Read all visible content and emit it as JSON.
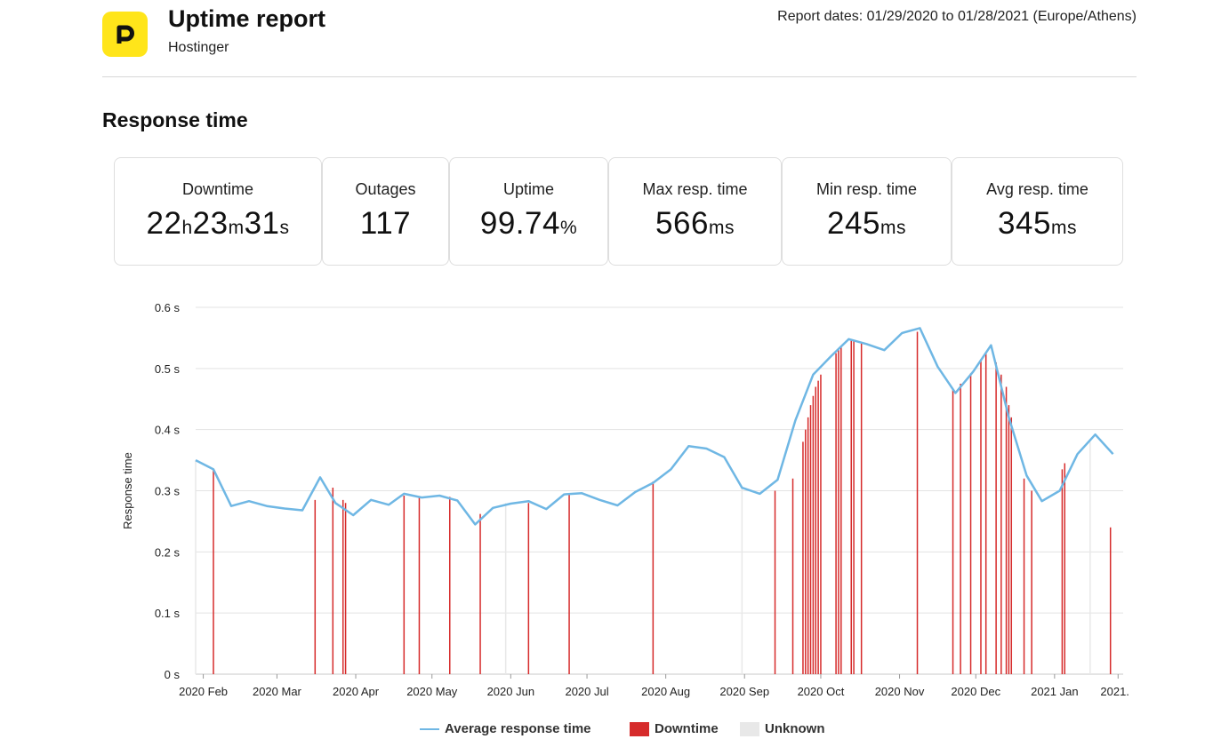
{
  "header": {
    "logo_letter": "P",
    "title": "Uptime report",
    "subtitle": "Hostinger",
    "report_dates": "Report dates: 01/29/2020 to 01/28/2021 (Europe/Athens)"
  },
  "section_title": "Response time",
  "stats": {
    "downtime": {
      "label": "Downtime",
      "h": "22",
      "h_unit": "h",
      "m": "23",
      "m_unit": "m",
      "s": "31",
      "s_unit": "s"
    },
    "outages": {
      "label": "Outages",
      "value": "117"
    },
    "uptime": {
      "label": "Uptime",
      "value": "99.74",
      "unit": "%"
    },
    "max_resp": {
      "label": "Max resp. time",
      "value": "566",
      "unit": "ms"
    },
    "min_resp": {
      "label": "Min resp. time",
      "value": "245",
      "unit": "ms"
    },
    "avg_resp": {
      "label": "Avg resp. time",
      "value": "345",
      "unit": "ms"
    }
  },
  "colors": {
    "logo_bg": "#ffe51a",
    "line": "#6fb7e4",
    "downtime": "#d62b2b",
    "unknown": "#e8e8e8",
    "grid": "#e3e3e3"
  },
  "chart_data": {
    "type": "line",
    "ylabel": "Response time",
    "ylim": [
      0,
      0.6
    ],
    "y_ticks": [
      "0 s",
      "0.1 s",
      "0.2 s",
      "0.3 s",
      "0.4 s",
      "0.5 s",
      "0.6 s"
    ],
    "y_tick_values": [
      0,
      0.1,
      0.2,
      0.3,
      0.4,
      0.5,
      0.6
    ],
    "x_day_range": [
      0,
      365
    ],
    "x_ticks": [
      {
        "label": "2020 Feb",
        "day": 3
      },
      {
        "label": "2020 Mar",
        "day": 32
      },
      {
        "label": "2020 Apr",
        "day": 63
      },
      {
        "label": "2020 May",
        "day": 93
      },
      {
        "label": "2020 Jun",
        "day": 124
      },
      {
        "label": "2020 Jul",
        "day": 154
      },
      {
        "label": "2020 Aug",
        "day": 185
      },
      {
        "label": "2020 Sep",
        "day": 216
      },
      {
        "label": "2020 Oct",
        "day": 246
      },
      {
        "label": "2020 Nov",
        "day": 277
      },
      {
        "label": "2020 Dec",
        "day": 307
      },
      {
        "label": "2021 Jan",
        "day": 338
      },
      {
        "label": "2021...",
        "day": 363
      }
    ],
    "series": [
      {
        "name": "Average response time",
        "points": [
          [
            0,
            0.35
          ],
          [
            7,
            0.335
          ],
          [
            14,
            0.275
          ],
          [
            21,
            0.283
          ],
          [
            28,
            0.275
          ],
          [
            35,
            0.271
          ],
          [
            42,
            0.268
          ],
          [
            49,
            0.322
          ],
          [
            55,
            0.28
          ],
          [
            62,
            0.26
          ],
          [
            69,
            0.285
          ],
          [
            76,
            0.277
          ],
          [
            82,
            0.295
          ],
          [
            89,
            0.289
          ],
          [
            96,
            0.292
          ],
          [
            103,
            0.284
          ],
          [
            110,
            0.245
          ],
          [
            117,
            0.272
          ],
          [
            124,
            0.279
          ],
          [
            131,
            0.283
          ],
          [
            138,
            0.27
          ],
          [
            145,
            0.294
          ],
          [
            152,
            0.296
          ],
          [
            159,
            0.285
          ],
          [
            166,
            0.276
          ],
          [
            173,
            0.298
          ],
          [
            180,
            0.313
          ],
          [
            187,
            0.335
          ],
          [
            194,
            0.373
          ],
          [
            201,
            0.369
          ],
          [
            208,
            0.355
          ],
          [
            215,
            0.305
          ],
          [
            222,
            0.295
          ],
          [
            229,
            0.318
          ],
          [
            236,
            0.415
          ],
          [
            243,
            0.49
          ],
          [
            250,
            0.52
          ],
          [
            257,
            0.548
          ],
          [
            264,
            0.54
          ],
          [
            271,
            0.53
          ],
          [
            278,
            0.558
          ],
          [
            285,
            0.566
          ],
          [
            292,
            0.503
          ],
          [
            299,
            0.46
          ],
          [
            306,
            0.495
          ],
          [
            313,
            0.538
          ],
          [
            320,
            0.42
          ],
          [
            327,
            0.325
          ],
          [
            333,
            0.283
          ],
          [
            340,
            0.3
          ],
          [
            347,
            0.36
          ],
          [
            354,
            0.392
          ],
          [
            361,
            0.36
          ]
        ]
      }
    ],
    "downtime": [
      [
        7,
        0.335
      ],
      [
        47,
        0.285
      ],
      [
        54,
        0.305
      ],
      [
        58,
        0.285
      ],
      [
        59,
        0.28
      ],
      [
        82,
        0.292
      ],
      [
        88,
        0.291
      ],
      [
        100,
        0.29
      ],
      [
        112,
        0.262
      ],
      [
        131,
        0.28
      ],
      [
        147,
        0.295
      ],
      [
        180,
        0.315
      ],
      [
        228,
        0.3
      ],
      [
        235,
        0.32
      ],
      [
        239,
        0.38
      ],
      [
        240,
        0.4
      ],
      [
        241,
        0.42
      ],
      [
        242,
        0.44
      ],
      [
        243,
        0.455
      ],
      [
        244,
        0.47
      ],
      [
        245,
        0.48
      ],
      [
        246,
        0.49
      ],
      [
        252,
        0.525
      ],
      [
        253,
        0.53
      ],
      [
        254,
        0.535
      ],
      [
        258,
        0.547
      ],
      [
        259,
        0.545
      ],
      [
        262,
        0.543
      ],
      [
        284,
        0.56
      ],
      [
        298,
        0.465
      ],
      [
        301,
        0.475
      ],
      [
        305,
        0.492
      ],
      [
        309,
        0.515
      ],
      [
        311,
        0.525
      ],
      [
        315,
        0.51
      ],
      [
        317,
        0.49
      ],
      [
        319,
        0.47
      ],
      [
        320,
        0.44
      ],
      [
        321,
        0.42
      ],
      [
        326,
        0.32
      ],
      [
        329,
        0.3
      ],
      [
        341,
        0.335
      ],
      [
        342,
        0.345
      ],
      [
        360,
        0.24
      ]
    ],
    "unknown": [
      [
        0,
        0.35
      ],
      [
        122,
        0.28
      ],
      [
        215,
        0.305
      ],
      [
        352,
        0.38
      ]
    ]
  },
  "legend": {
    "line_label": "Average response time",
    "downtime_label": "Downtime",
    "unknown_label": "Unknown"
  }
}
